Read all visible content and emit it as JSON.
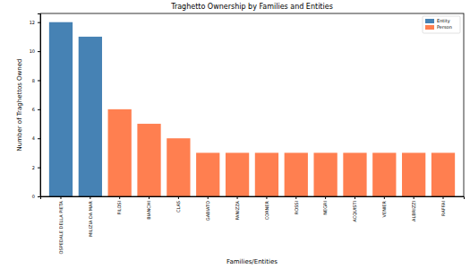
{
  "chart_data": {
    "type": "bar",
    "title": "Traghetto Ownership by Families and Entities",
    "x_label": "Families/Entities",
    "y_label": "Number of Traghettos Owned",
    "categories": [
      "OSPEDALE DELLA PIETA",
      "MILIZIA DA MAR",
      "FILOSI",
      "BIANCHI",
      "CLAS",
      "GABIATO",
      "PANIZZA",
      "CORNER",
      "ROSSI",
      "NEGRI",
      "ACQUISTI",
      "VENIER",
      "ALBRIZZI",
      "RAFFAI"
    ],
    "series": [
      {
        "name": "Entity",
        "color": "#4682b4",
        "values": [
          12,
          11,
          null,
          null,
          null,
          null,
          null,
          null,
          null,
          null,
          null,
          null,
          null,
          null
        ]
      },
      {
        "name": "Person",
        "color": "#ff7f50",
        "values": [
          null,
          null,
          6,
          5,
          4,
          3,
          3,
          3,
          3,
          3,
          3,
          3,
          3,
          3
        ]
      }
    ],
    "ylim": [
      0,
      12.6
    ],
    "yticks": [
      0,
      2,
      4,
      6,
      8,
      10,
      12
    ],
    "grid": false,
    "legend": "upper right"
  }
}
